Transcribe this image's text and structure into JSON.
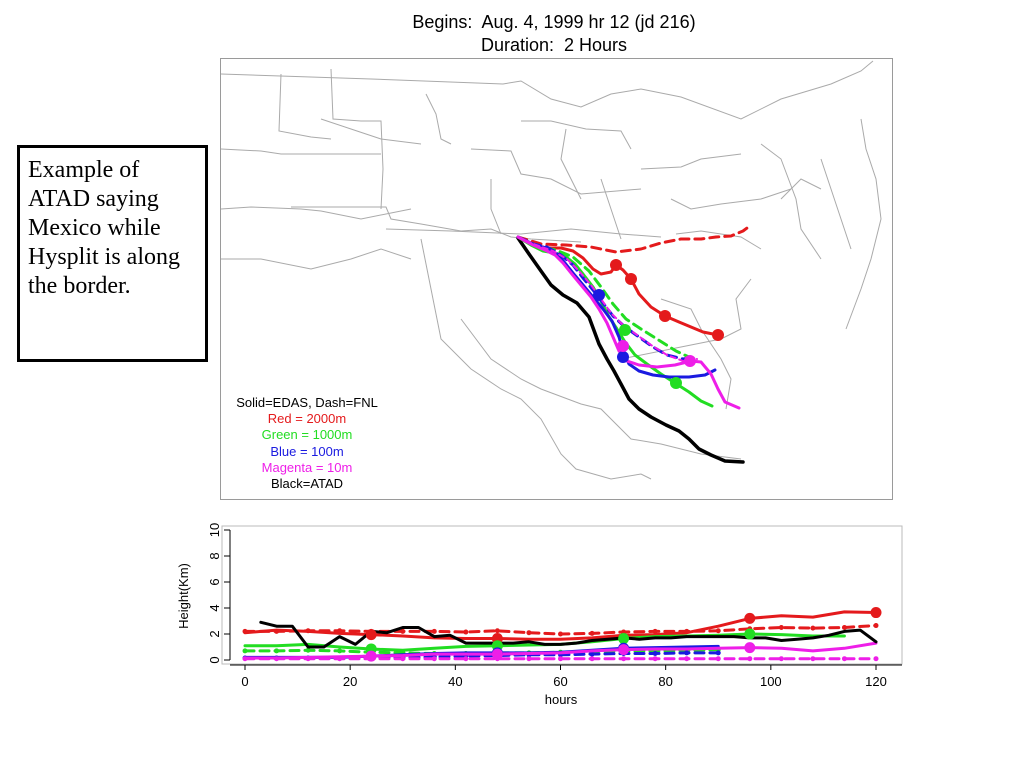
{
  "header": {
    "title_line1": "Begins:  Aug. 4, 1999 hr 12 (jd 216)",
    "title_line2": "Duration:  2 Hours"
  },
  "callout": {
    "text": "Example of ATAD saying Mexico while Hysplit is along the border."
  },
  "colors": {
    "red": "#e41a1c",
    "green": "#22dd22",
    "blue": "#1a1ae0",
    "magenta": "#ee1ee8",
    "black": "#000000",
    "border_line": "#aaaaaa",
    "frame": "#9a9a9a"
  },
  "legend": {
    "items": [
      {
        "text": "Solid=EDAS, Dash=FNL",
        "color": "#000000"
      },
      {
        "text": "Red = 2000m",
        "color": "#e41a1c"
      },
      {
        "text": "Green = 1000m",
        "color": "#22dd22"
      },
      {
        "text": "Blue = 100m",
        "color": "#1a1ae0"
      },
      {
        "text": "Magenta = 10m",
        "color": "#ee1ee8"
      },
      {
        "text": "Black=ATAD",
        "color": "#000000"
      }
    ]
  },
  "chart_data": {
    "type": "line",
    "xlabel": "hours",
    "ylabel": "Height(Km)",
    "xlim": [
      0,
      120
    ],
    "ylim": [
      0,
      10
    ],
    "xticks": [
      0,
      20,
      40,
      60,
      80,
      100,
      120
    ],
    "yticks": [
      0,
      2,
      4,
      6,
      8,
      10
    ],
    "series": [
      {
        "color": "red",
        "style": "solid",
        "markers_at": [
          24,
          48,
          96,
          120
        ],
        "x": [
          0,
          6,
          12,
          18,
          24,
          30,
          36,
          42,
          48,
          54,
          60,
          66,
          72,
          78,
          84,
          90,
          96,
          102,
          108,
          114,
          120
        ],
        "y": [
          2.1,
          2.3,
          2.2,
          2.05,
          1.95,
          1.85,
          1.7,
          1.65,
          1.65,
          1.6,
          1.6,
          1.7,
          1.9,
          1.95,
          2.1,
          2.6,
          3.2,
          3.4,
          3.3,
          3.7,
          3.65
        ]
      },
      {
        "color": "red",
        "style": "dash",
        "x": [
          0,
          6,
          12,
          18,
          24,
          30,
          36,
          42,
          48,
          54,
          60,
          66,
          72,
          78,
          84,
          90,
          96,
          102,
          108,
          114,
          120
        ],
        "y": [
          2.2,
          2.2,
          2.25,
          2.25,
          2.2,
          2.2,
          2.2,
          2.15,
          2.25,
          2.1,
          2.0,
          2.05,
          2.15,
          2.2,
          2.2,
          2.25,
          2.4,
          2.5,
          2.45,
          2.5,
          2.65
        ]
      },
      {
        "color": "green",
        "style": "solid",
        "markers_at": [
          24,
          48,
          72,
          96
        ],
        "x": [
          0,
          6,
          12,
          18,
          24,
          30,
          36,
          42,
          48,
          54,
          60,
          66,
          72,
          78,
          84,
          90,
          96,
          102,
          108,
          114
        ],
        "y": [
          1.1,
          1.1,
          1.2,
          1.0,
          0.85,
          0.75,
          0.9,
          1.05,
          1.1,
          1.15,
          1.2,
          1.4,
          1.65,
          1.8,
          1.85,
          1.9,
          2.0,
          1.95,
          1.85,
          1.85
        ]
      },
      {
        "color": "green",
        "style": "dash",
        "x": [
          0,
          6,
          12,
          18,
          24,
          30,
          36,
          42,
          48,
          54,
          60,
          66,
          72,
          78,
          84,
          90
        ],
        "y": [
          0.7,
          0.7,
          0.75,
          0.7,
          0.6,
          0.55,
          0.5,
          0.5,
          0.55,
          0.55,
          0.6,
          0.65,
          0.7,
          0.7,
          0.75,
          0.8
        ]
      },
      {
        "color": "blue",
        "style": "solid",
        "markers_at": [
          48,
          72
        ],
        "x": [
          0,
          6,
          12,
          18,
          24,
          30,
          36,
          42,
          48,
          54,
          60,
          66,
          72,
          78,
          84,
          90
        ],
        "y": [
          0.2,
          0.2,
          0.2,
          0.2,
          0.3,
          0.4,
          0.5,
          0.55,
          0.55,
          0.55,
          0.6,
          0.75,
          0.9,
          0.95,
          1.0,
          1.05
        ]
      },
      {
        "color": "blue",
        "style": "dash",
        "x": [
          0,
          6,
          12,
          18,
          24,
          30,
          36,
          42,
          48,
          54,
          60,
          66,
          72,
          78,
          84,
          90
        ],
        "y": [
          0.15,
          0.15,
          0.15,
          0.15,
          0.15,
          0.2,
          0.25,
          0.3,
          0.35,
          0.4,
          0.4,
          0.45,
          0.5,
          0.5,
          0.55,
          0.55
        ]
      },
      {
        "color": "magenta",
        "style": "solid",
        "markers_at": [
          24,
          48,
          72,
          96
        ],
        "x": [
          0,
          6,
          12,
          18,
          24,
          30,
          36,
          42,
          48,
          54,
          60,
          66,
          72,
          78,
          84,
          90,
          96,
          102,
          108,
          114,
          120
        ],
        "y": [
          0.15,
          0.15,
          0.2,
          0.25,
          0.3,
          0.35,
          0.45,
          0.45,
          0.45,
          0.5,
          0.55,
          0.7,
          0.8,
          0.85,
          0.85,
          0.9,
          0.95,
          0.9,
          0.7,
          0.9,
          1.3
        ]
      },
      {
        "color": "magenta",
        "style": "dash",
        "x": [
          0,
          6,
          12,
          18,
          24,
          30,
          36,
          42,
          48,
          54,
          60,
          66,
          72,
          78,
          84,
          90,
          96,
          102,
          108,
          114,
          120
        ],
        "y": [
          0.1,
          0.1,
          0.1,
          0.1,
          0.1,
          0.1,
          0.1,
          0.1,
          0.1,
          0.1,
          0.1,
          0.1,
          0.1,
          0.1,
          0.1,
          0.1,
          0.1,
          0.1,
          0.1,
          0.1,
          0.1
        ]
      },
      {
        "color": "black",
        "style": "solid",
        "x": [
          3,
          6,
          9,
          12,
          15,
          18,
          21,
          24,
          27,
          30,
          33,
          36,
          39,
          42,
          45,
          48,
          51,
          54,
          57,
          60,
          63,
          66,
          69,
          72,
          75,
          78,
          81,
          84,
          87,
          90,
          93,
          96,
          99,
          102,
          105,
          108,
          111,
          114,
          117,
          120
        ],
        "y": [
          2.9,
          2.6,
          2.6,
          1.0,
          1.0,
          1.8,
          1.2,
          2.2,
          2.1,
          2.5,
          2.5,
          1.8,
          1.9,
          1.3,
          1.3,
          1.3,
          1.3,
          1.4,
          1.2,
          1.2,
          1.3,
          1.5,
          1.6,
          1.7,
          1.6,
          1.7,
          1.7,
          1.8,
          1.8,
          1.8,
          1.8,
          1.7,
          1.7,
          1.5,
          1.6,
          1.7,
          1.9,
          2.2,
          2.3,
          1.4
        ]
      }
    ]
  }
}
